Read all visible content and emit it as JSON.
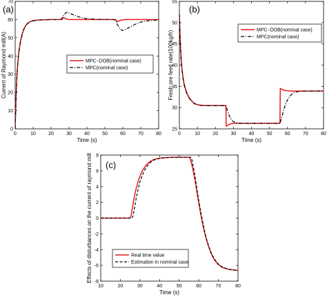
{
  "colors": {
    "real": "#e8191c",
    "estimate": "#000000"
  },
  "chart_data": [
    {
      "id": "a",
      "type": "line",
      "panel_label": "(a)",
      "title": "",
      "xlabel": "Time (s)",
      "ylabel": "Current of Raymond mill(A)",
      "xlim": [
        0,
        80
      ],
      "ylim": [
        0,
        70
      ],
      "xticks": [
        0,
        10,
        20,
        30,
        40,
        50,
        60,
        70,
        80
      ],
      "yticks": [
        0,
        10,
        20,
        30,
        40,
        50,
        60,
        70
      ],
      "grid": false,
      "legend_position": "center-right",
      "series": [
        {
          "name": "MPC−DOB(nominal case)",
          "color": "#e8191c",
          "style": "solid",
          "x": [
            0,
            0.5,
            1,
            1.5,
            2,
            3,
            4,
            5,
            6,
            7,
            8,
            9,
            10,
            12,
            14,
            16,
            18,
            20,
            22,
            24,
            25,
            26,
            27,
            28,
            29,
            30,
            32,
            35,
            40,
            45,
            50,
            54,
            55,
            56,
            57,
            58,
            59,
            60,
            62,
            65,
            70,
            75,
            80
          ],
          "y": [
            0,
            18,
            30,
            37,
            42,
            48.5,
            52.5,
            55.2,
            57,
            58,
            58.7,
            59.1,
            59.4,
            59.7,
            59.85,
            59.9,
            59.95,
            60,
            60,
            60,
            60,
            60,
            61.2,
            60.6,
            60.2,
            60,
            60,
            60,
            60,
            60,
            60,
            60,
            60,
            60,
            58.8,
            59.3,
            59.7,
            59.9,
            60,
            60,
            60,
            60,
            60
          ]
        },
        {
          "name": "MPC(nominal case)",
          "color": "#000000",
          "style": "dashdot",
          "x": [
            0,
            0.5,
            1,
            1.5,
            2,
            3,
            4,
            5,
            6,
            7,
            8,
            9,
            10,
            12,
            14,
            16,
            18,
            20,
            22,
            24,
            25,
            26,
            27,
            28,
            29,
            30,
            32,
            34,
            36,
            38,
            40,
            45,
            50,
            54,
            55,
            56,
            57,
            58,
            59,
            60,
            62,
            64,
            66,
            68,
            70,
            72,
            75,
            80
          ],
          "y": [
            0,
            17,
            29,
            36,
            41.5,
            48,
            52,
            55,
            56.8,
            57.9,
            58.6,
            59,
            59.3,
            59.6,
            59.8,
            59.9,
            59.95,
            60,
            60,
            60,
            60,
            60.5,
            62.3,
            63.6,
            64,
            63.6,
            62.8,
            62,
            61.3,
            60.8,
            60.5,
            60.2,
            60.1,
            60,
            60,
            59.5,
            57.3,
            55.6,
            54.4,
            54,
            54.8,
            55.9,
            57,
            57.9,
            58.6,
            59.1,
            59.5,
            59.8
          ]
        }
      ]
    },
    {
      "id": "b",
      "type": "line",
      "panel_label": "(b)",
      "title": "",
      "xlabel": "Time (s)",
      "ylabel": "Fresh ore feed rate(100kg/h)",
      "xlim": [
        0,
        80
      ],
      "ylim": [
        25,
        55
      ],
      "xticks": [
        0,
        10,
        20,
        30,
        40,
        50,
        60,
        70,
        80
      ],
      "yticks": [
        25,
        30,
        35,
        40,
        45,
        50,
        55
      ],
      "grid": false,
      "legend_position": "top-right",
      "series": [
        {
          "name": "MPC−DOB(nominal case)",
          "color": "#e8191c",
          "style": "solid",
          "x": [
            0,
            0.5,
            1,
            1.5,
            2,
            2.5,
            3,
            4,
            5,
            6,
            7,
            8,
            9,
            10,
            12,
            14,
            16,
            18,
            20,
            22,
            24,
            25,
            25.8,
            26,
            27,
            28,
            29,
            30,
            32,
            35,
            40,
            45,
            50,
            54,
            55,
            55.8,
            56,
            57,
            58,
            59,
            60,
            62,
            65,
            70,
            75,
            80
          ],
          "y": [
            52,
            45.5,
            41.5,
            39,
            37.2,
            35.9,
            35,
            33.6,
            32.7,
            32,
            31.5,
            31.1,
            30.85,
            30.7,
            30.55,
            30.5,
            30.5,
            30.5,
            30.5,
            30.5,
            30.5,
            30.5,
            30.5,
            25.6,
            25.9,
            26.1,
            26.25,
            26.3,
            26.3,
            26.3,
            26.3,
            26.3,
            26.3,
            26.3,
            26.3,
            26.3,
            34.5,
            34.3,
            34.1,
            34,
            33.95,
            33.9,
            33.9,
            33.9,
            33.9,
            33.9
          ]
        },
        {
          "name": "MPC(nominal case)",
          "color": "#000000",
          "style": "dashdot",
          "x": [
            0,
            0.5,
            1,
            1.5,
            2,
            2.5,
            3,
            4,
            5,
            6,
            7,
            8,
            9,
            10,
            12,
            14,
            16,
            18,
            20,
            22,
            24,
            25,
            26,
            27,
            28,
            29,
            30,
            31,
            32,
            33,
            34,
            36,
            40,
            45,
            50,
            54,
            55,
            56,
            57,
            58,
            59,
            60,
            61,
            62,
            63,
            64,
            66,
            70,
            75,
            80
          ],
          "y": [
            52,
            45,
            41,
            38.6,
            36.9,
            35.6,
            34.7,
            33.4,
            32.5,
            31.9,
            31.4,
            31,
            30.8,
            30.65,
            30.5,
            30.45,
            30.45,
            30.45,
            30.45,
            30.45,
            30.45,
            30.45,
            30.3,
            28.8,
            27.8,
            27.1,
            26.7,
            26.5,
            26.4,
            26.35,
            26.3,
            26.3,
            26.3,
            26.3,
            26.3,
            26.3,
            26.3,
            26.5,
            28,
            29.6,
            30.9,
            31.8,
            32.5,
            33,
            33.35,
            33.6,
            33.8,
            33.9,
            33.9,
            33.9
          ]
        }
      ]
    },
    {
      "id": "c",
      "type": "line",
      "panel_label": "(c)",
      "title": "",
      "xlabel": "Time (s)",
      "ylabel": "Effects of disturbances on the current of raymond mill",
      "xlim": [
        10,
        80
      ],
      "ylim": [
        -8,
        8
      ],
      "xticks": [
        10,
        20,
        30,
        40,
        50,
        60,
        70,
        80
      ],
      "yticks": [
        -8,
        -6,
        -4,
        -2,
        0,
        2,
        4,
        6,
        8
      ],
      "grid": false,
      "legend_position": "bottom-left",
      "series": [
        {
          "name": "Real time value",
          "color": "#e8191c",
          "style": "solid",
          "x": [
            10,
            15,
            20,
            25,
            25.5,
            26,
            27,
            28,
            29,
            30,
            31,
            32,
            33,
            34,
            35,
            36,
            37,
            38,
            40,
            42,
            45,
            50,
            55,
            55.5,
            56,
            57,
            58,
            59,
            60,
            61,
            62,
            63,
            64,
            65,
            66,
            67,
            68,
            70,
            72,
            75,
            80
          ],
          "y": [
            0,
            0,
            0,
            0,
            0.3,
            1.1,
            2.5,
            3.7,
            4.6,
            5.3,
            5.9,
            6.3,
            6.7,
            6.95,
            7.15,
            7.3,
            7.42,
            7.5,
            7.6,
            7.65,
            7.7,
            7.72,
            7.72,
            7.6,
            7.2,
            6.2,
            4.9,
            3.4,
            1.9,
            0.5,
            -0.8,
            -1.9,
            -2.8,
            -3.6,
            -4.3,
            -4.85,
            -5.3,
            -5.9,
            -6.25,
            -6.5,
            -6.65
          ]
        },
        {
          "name": "Estimation in nominal case",
          "color": "#000000",
          "style": "dashed",
          "x": [
            10,
            15,
            20,
            25,
            26,
            26.5,
            27,
            28,
            29,
            30,
            31,
            32,
            33,
            34,
            35,
            36,
            37,
            38,
            40,
            42,
            45,
            50,
            55,
            56,
            56.5,
            57,
            58,
            59,
            60,
            61,
            62,
            63,
            64,
            65,
            66,
            67,
            68,
            70,
            72,
            75,
            80
          ],
          "y": [
            0,
            0,
            0,
            0,
            0,
            0.3,
            1.0,
            2.4,
            3.6,
            4.6,
            5.3,
            5.9,
            6.35,
            6.7,
            6.98,
            7.2,
            7.35,
            7.45,
            7.58,
            7.64,
            7.7,
            7.72,
            7.72,
            7.72,
            7.4,
            6.8,
            5.4,
            3.8,
            2.2,
            0.8,
            -0.5,
            -1.7,
            -2.7,
            -3.5,
            -4.2,
            -4.75,
            -5.2,
            -5.85,
            -6.2,
            -6.48,
            -6.65
          ]
        }
      ]
    }
  ]
}
